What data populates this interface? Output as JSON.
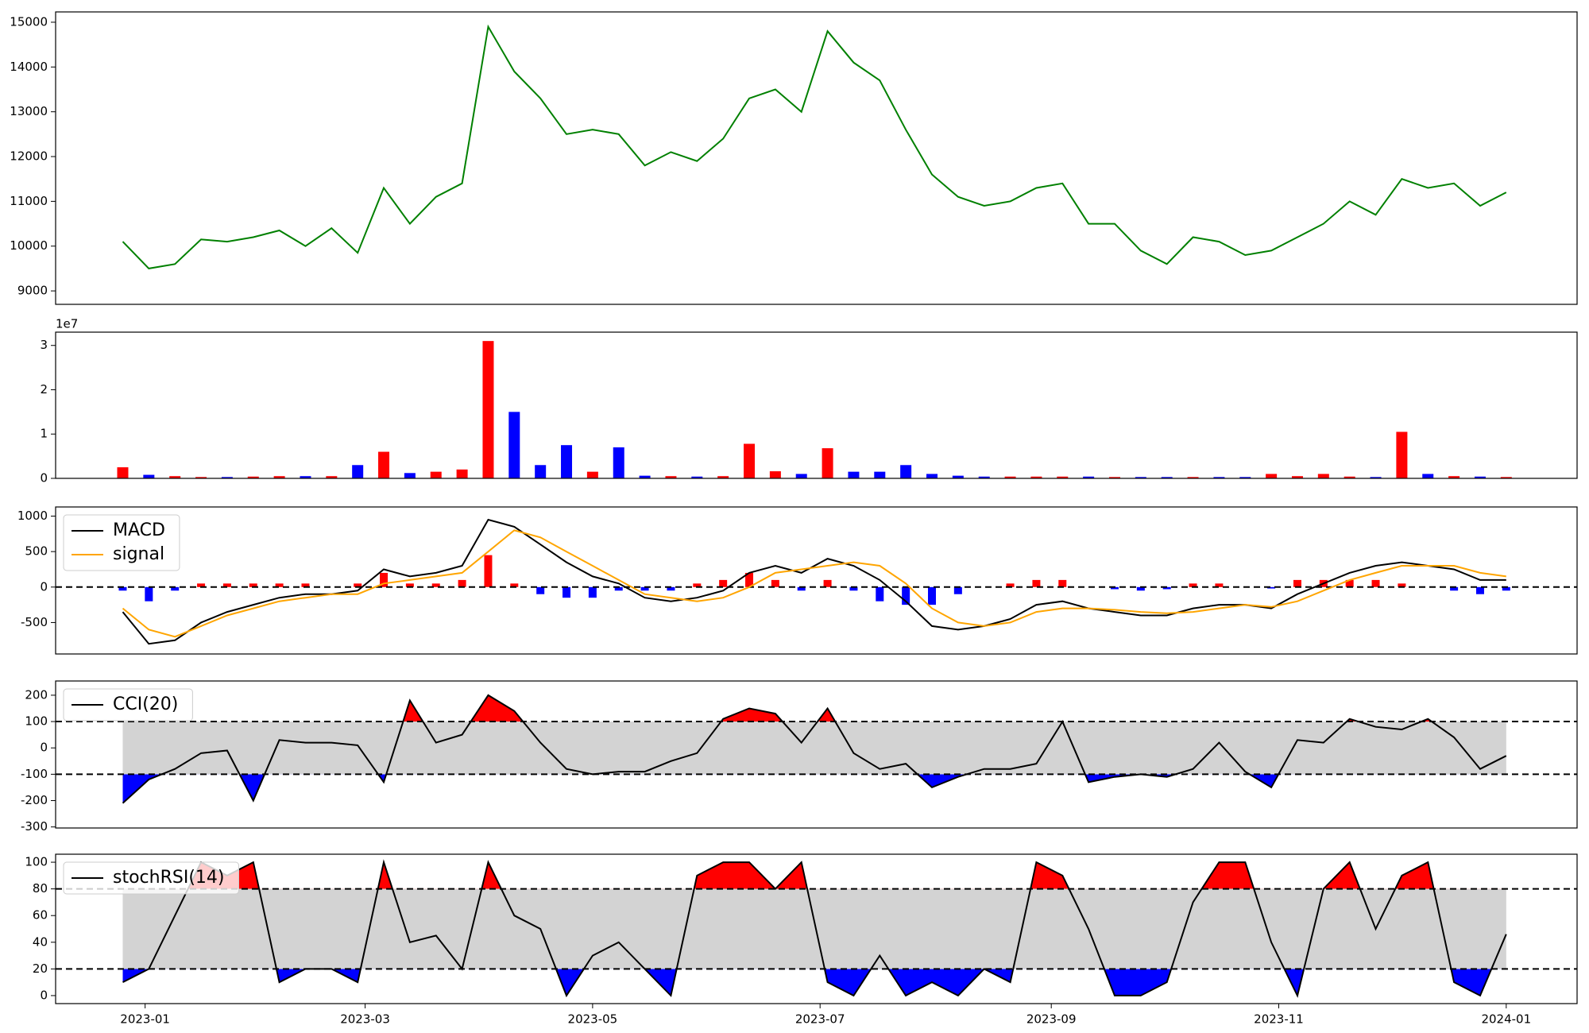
{
  "chart_data": [
    {
      "type": "line",
      "x": [
        "2022-12-26",
        "2023-01-02",
        "2023-01-09",
        "2023-01-16",
        "2023-01-23",
        "2023-01-30",
        "2023-02-06",
        "2023-02-13",
        "2023-02-20",
        "2023-02-27",
        "2023-03-06",
        "2023-03-13",
        "2023-03-20",
        "2023-03-27",
        "2023-04-03",
        "2023-04-10",
        "2023-04-17",
        "2023-04-24",
        "2023-05-01",
        "2023-05-08",
        "2023-05-15",
        "2023-05-22",
        "2023-05-29",
        "2023-06-05",
        "2023-06-12",
        "2023-06-19",
        "2023-06-26",
        "2023-07-03",
        "2023-07-10",
        "2023-07-17",
        "2023-07-24",
        "2023-07-31",
        "2023-08-07",
        "2023-08-14",
        "2023-08-21",
        "2023-08-28",
        "2023-09-04",
        "2023-09-11",
        "2023-09-18",
        "2023-09-25",
        "2023-10-02",
        "2023-10-09",
        "2023-10-16",
        "2023-10-23",
        "2023-10-30",
        "2023-11-06",
        "2023-11-13",
        "2023-11-20",
        "2023-11-27",
        "2023-12-04",
        "2023-12-11",
        "2023-12-18",
        "2023-12-25",
        "2024-01-01"
      ],
      "xlim": [
        "2022-12-08",
        "2024-01-20"
      ],
      "series": [
        {
          "color": "green",
          "values": [
            10100,
            9500,
            9600,
            10150,
            10100,
            10200,
            10350,
            10000,
            10400,
            9850,
            11300,
            10500,
            11100,
            11400,
            14900,
            13900,
            13300,
            12500,
            12600,
            12500,
            11800,
            12100,
            11900,
            12400,
            13300,
            13500,
            13000,
            14800,
            14100,
            13700,
            12600,
            11600,
            11100,
            10900,
            11000,
            11300,
            11400,
            10500,
            10500,
            9900,
            9600,
            10200,
            10100,
            9800,
            9900,
            10200,
            10500,
            11000,
            10700,
            11500,
            11300,
            11400,
            10900,
            11200
          ]
        }
      ],
      "ylim": [
        8700,
        15230
      ],
      "yticks": [
        9000,
        10000,
        11000,
        12000,
        13000,
        14000,
        15000
      ]
    },
    {
      "type": "bar",
      "offset_label": "1e7",
      "up_color": "red",
      "down_color": "blue",
      "values": [
        2500000,
        800000,
        500000,
        300000,
        300000,
        400000,
        500000,
        500000,
        500000,
        3000000,
        6000000,
        1200000,
        1500000,
        2000000,
        31000000,
        15000000,
        3000000,
        7500000,
        1500000,
        7000000,
        600000,
        500000,
        400000,
        500000,
        7800000,
        1600000,
        1000000,
        6800000,
        1500000,
        1500000,
        3000000,
        1000000,
        600000,
        400000,
        400000,
        400000,
        400000,
        400000,
        300000,
        300000,
        300000,
        300000,
        300000,
        300000,
        1000000,
        500000,
        1000000,
        400000,
        300000,
        10500000,
        1000000,
        500000,
        400000,
        300000
      ],
      "ylim": [
        0,
        33000000
      ],
      "yticks": [
        {
          "value": 0,
          "label": "0"
        },
        {
          "value": 10000000,
          "label": "1"
        },
        {
          "value": 20000000,
          "label": "2"
        },
        {
          "value": 30000000,
          "label": "3"
        }
      ]
    },
    {
      "type": "combo",
      "reference_lines": [
        0
      ],
      "pos_color": "red",
      "neg_color": "blue",
      "series": [
        {
          "name": "MACD",
          "type": "line",
          "color": "black",
          "values": [
            -350,
            -800,
            -750,
            -500,
            -350,
            -250,
            -150,
            -100,
            -100,
            -50,
            250,
            150,
            200,
            300,
            950,
            850,
            600,
            350,
            150,
            50,
            -150,
            -200,
            -150,
            -50,
            200,
            300,
            200,
            400,
            300,
            100,
            -200,
            -550,
            -600,
            -550,
            -450,
            -250,
            -200,
            -300,
            -350,
            -400,
            -400,
            -300,
            -250,
            -250,
            -300,
            -100,
            50,
            200,
            300,
            350,
            300,
            250,
            100,
            100
          ]
        },
        {
          "name": "signal",
          "type": "line",
          "color": "orange",
          "values": [
            -300,
            -600,
            -700,
            -550,
            -400,
            -300,
            -200,
            -150,
            -100,
            -100,
            50,
            100,
            150,
            200,
            500,
            800,
            700,
            500,
            300,
            100,
            -100,
            -150,
            -200,
            -150,
            0,
            200,
            250,
            300,
            350,
            300,
            50,
            -300,
            -500,
            -550,
            -500,
            -350,
            -300,
            -300,
            -320,
            -350,
            -370,
            -350,
            -300,
            -250,
            -280,
            -200,
            -50,
            100,
            200,
            300,
            300,
            300,
            200,
            150
          ]
        },
        {
          "type": "bar",
          "values": [
            -50,
            -200,
            -50,
            50,
            50,
            50,
            50,
            50,
            0,
            50,
            200,
            50,
            50,
            100,
            450,
            50,
            -100,
            -150,
            -150,
            -50,
            -50,
            -50,
            50,
            100,
            200,
            100,
            -50,
            100,
            -50,
            -200,
            -250,
            -250,
            -100,
            0,
            50,
            100,
            100,
            0,
            -30,
            -50,
            -30,
            50,
            50,
            0,
            -20,
            100,
            100,
            100,
            100,
            50,
            0,
            -50,
            -100,
            -50
          ]
        }
      ],
      "ylim": [
        -943,
        1129
      ],
      "yticks": [
        -500,
        0,
        500,
        1000
      ]
    },
    {
      "type": "oscillator",
      "reference_lines": [
        100,
        -100
      ],
      "band_color": "lightgray",
      "above_color": "red",
      "below_color": "blue",
      "series": [
        {
          "name": "CCI(20)",
          "color": "black",
          "values": [
            -210,
            -120,
            -80,
            -20,
            -10,
            -200,
            30,
            20,
            20,
            10,
            -130,
            180,
            20,
            50,
            200,
            140,
            20,
            -80,
            -100,
            -90,
            -90,
            -50,
            -20,
            110,
            150,
            130,
            20,
            150,
            -20,
            -80,
            -60,
            -150,
            -110,
            -80,
            -80,
            -60,
            100,
            -130,
            -110,
            -100,
            -110,
            -80,
            20,
            -90,
            -150,
            30,
            20,
            110,
            80,
            70,
            110,
            40,
            -80,
            -30
          ]
        }
      ],
      "ylim": [
        -304,
        254
      ],
      "yticks": [
        -300,
        -200,
        -100,
        0,
        100,
        200
      ]
    },
    {
      "type": "oscillator",
      "reference_lines": [
        80,
        20
      ],
      "band_color": "lightgray",
      "above_color": "red",
      "below_color": "blue",
      "series": [
        {
          "name": "stochRSI(14)",
          "color": "black",
          "values": [
            10,
            20,
            60,
            100,
            90,
            100,
            10,
            20,
            20,
            10,
            100,
            40,
            45,
            20,
            100,
            60,
            50,
            0,
            30,
            40,
            20,
            0,
            90,
            100,
            100,
            80,
            100,
            10,
            0,
            30,
            0,
            10,
            0,
            20,
            10,
            100,
            90,
            50,
            0,
            0,
            10,
            70,
            100,
            100,
            40,
            0,
            80,
            100,
            50,
            90,
            100,
            10,
            0,
            46
          ]
        }
      ],
      "ylim": [
        -6,
        106
      ],
      "yticks": [
        0,
        20,
        40,
        60,
        80,
        100
      ],
      "xticks": [
        {
          "value": "2023-01-01",
          "label": "2023-01"
        },
        {
          "value": "2023-03-01",
          "label": "2023-03"
        },
        {
          "value": "2023-05-01",
          "label": "2023-05"
        },
        {
          "value": "2023-07-01",
          "label": "2023-07"
        },
        {
          "value": "2023-09-01",
          "label": "2023-09"
        },
        {
          "value": "2023-11-01",
          "label": "2023-11"
        },
        {
          "value": "2024-01-01",
          "label": "2024-01"
        }
      ]
    }
  ]
}
